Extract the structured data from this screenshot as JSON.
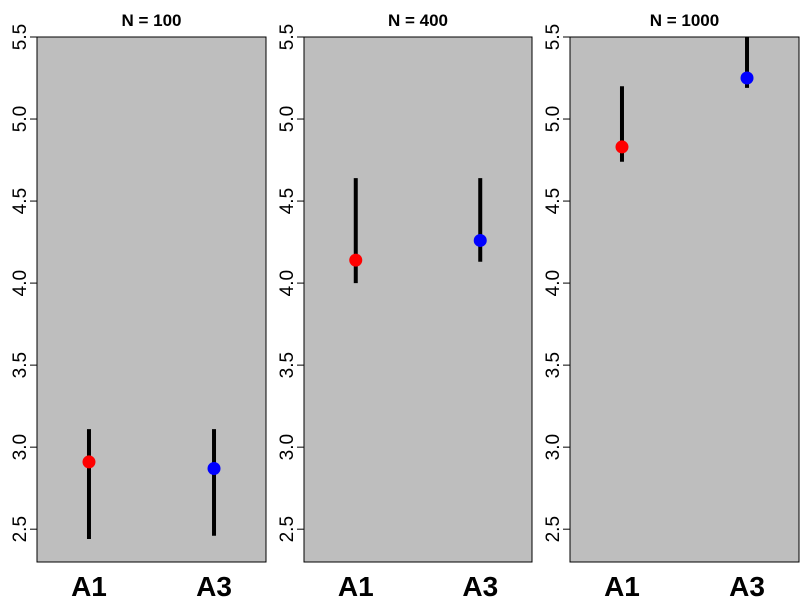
{
  "chart_data": [
    {
      "type": "errorbar",
      "title": "N = 100",
      "categories": [
        "A1",
        "A3"
      ],
      "ylim": [
        2.3,
        5.5
      ],
      "yticks": [
        "2.5",
        "3.0",
        "3.5",
        "4.0",
        "4.5",
        "5.0",
        "5.5"
      ],
      "points": [
        {
          "category": "A1",
          "y": 2.91,
          "low": 2.44,
          "high": 3.11,
          "color": "#ff0000"
        },
        {
          "category": "A3",
          "y": 2.87,
          "low": 2.46,
          "high": 3.11,
          "color": "#0000ff"
        }
      ],
      "background": "#bebebe",
      "grid": false
    },
    {
      "type": "errorbar",
      "title": "N = 400",
      "categories": [
        "A1",
        "A3"
      ],
      "ylim": [
        2.3,
        5.5
      ],
      "yticks": [
        "2.5",
        "3.0",
        "3.5",
        "4.0",
        "4.5",
        "5.0",
        "5.5"
      ],
      "points": [
        {
          "category": "A1",
          "y": 4.14,
          "low": 4.0,
          "high": 4.64,
          "color": "#ff0000"
        },
        {
          "category": "A3",
          "y": 4.26,
          "low": 4.13,
          "high": 4.64,
          "color": "#0000ff"
        }
      ],
      "background": "#bebebe",
      "grid": false
    },
    {
      "type": "errorbar",
      "title": "N = 1000",
      "categories": [
        "A1",
        "A3"
      ],
      "ylim": [
        2.3,
        5.5
      ],
      "yticks": [
        "2.5",
        "3.0",
        "3.5",
        "4.0",
        "4.5",
        "5.0",
        "5.5"
      ],
      "points": [
        {
          "category": "A1",
          "y": 4.83,
          "low": 4.74,
          "high": 5.2,
          "color": "#ff0000"
        },
        {
          "category": "A3",
          "y": 5.25,
          "low": 5.19,
          "high": 5.5,
          "color": "#0000ff"
        }
      ],
      "background": "#bebebe",
      "grid": false
    }
  ]
}
